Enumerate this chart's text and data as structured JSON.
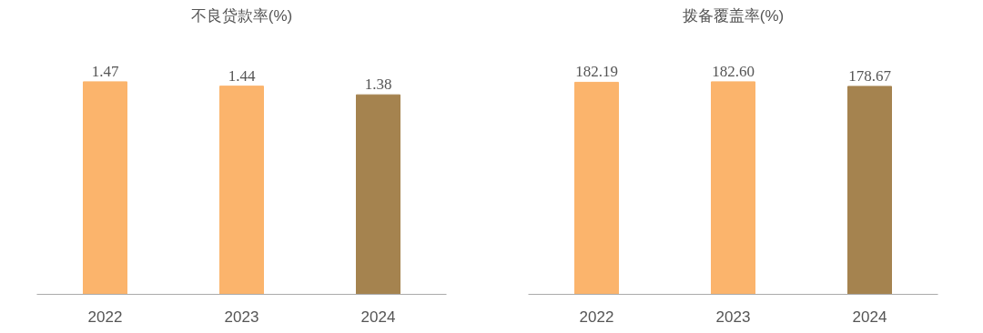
{
  "chart_data": [
    {
      "type": "bar",
      "title": "不良贷款率(%)",
      "categories": [
        "2022",
        "2023",
        "2024"
      ],
      "values": [
        1.47,
        1.44,
        1.38
      ],
      "value_labels": [
        "1.47",
        "1.44",
        "1.38"
      ],
      "colors": [
        "#fbb46c",
        "#fbb46c",
        "#a5834f"
      ]
    },
    {
      "type": "bar",
      "title": "拨备覆盖率(%)",
      "categories": [
        "2022",
        "2023",
        "2024"
      ],
      "values": [
        182.19,
        182.6,
        178.67
      ],
      "value_labels": [
        "182.19",
        "182.60",
        "178.67"
      ],
      "colors": [
        "#fbb46c",
        "#fbb46c",
        "#a5834f"
      ]
    }
  ]
}
